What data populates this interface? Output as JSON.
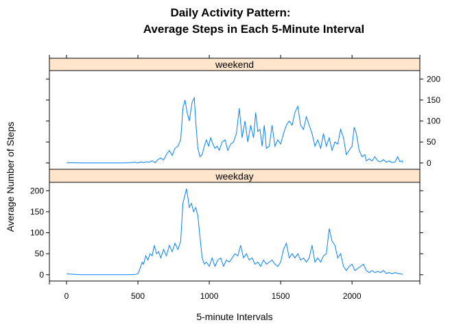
{
  "chart_data": {
    "type": "line",
    "title": "Daily Activity Pattern:",
    "subtitle": "Average Steps in Each 5-Minute Interval",
    "xlabel": "5-minute Intervals",
    "ylabel": "Average Number of Steps",
    "xlim": [
      -120,
      2475
    ],
    "ylim": [
      -15,
      220
    ],
    "x_ticks": [
      0,
      500,
      1000,
      1500,
      2000
    ],
    "y_ticks": [
      0,
      50,
      100,
      150,
      200
    ],
    "line_color": "#0080ff",
    "strip_color": "#ffe5cc",
    "panels": [
      {
        "name": "weekend",
        "points": [
          [
            0,
            1
          ],
          [
            100,
            0
          ],
          [
            200,
            0
          ],
          [
            300,
            0
          ],
          [
            400,
            0
          ],
          [
            450,
            1
          ],
          [
            480,
            2
          ],
          [
            500,
            0
          ],
          [
            520,
            3
          ],
          [
            540,
            1
          ],
          [
            560,
            3
          ],
          [
            580,
            2
          ],
          [
            600,
            5
          ],
          [
            620,
            1
          ],
          [
            640,
            8
          ],
          [
            660,
            12
          ],
          [
            680,
            7
          ],
          [
            700,
            20
          ],
          [
            720,
            30
          ],
          [
            740,
            18
          ],
          [
            760,
            35
          ],
          [
            780,
            40
          ],
          [
            800,
            55
          ],
          [
            815,
            130
          ],
          [
            830,
            150
          ],
          [
            845,
            120
          ],
          [
            860,
            100
          ],
          [
            880,
            145
          ],
          [
            895,
            155
          ],
          [
            905,
            100
          ],
          [
            920,
            35
          ],
          [
            935,
            15
          ],
          [
            950,
            20
          ],
          [
            965,
            40
          ],
          [
            980,
            55
          ],
          [
            995,
            40
          ],
          [
            1010,
            60
          ],
          [
            1025,
            45
          ],
          [
            1040,
            35
          ],
          [
            1055,
            40
          ],
          [
            1070,
            30
          ],
          [
            1090,
            50
          ],
          [
            1110,
            55
          ],
          [
            1130,
            30
          ],
          [
            1150,
            45
          ],
          [
            1170,
            50
          ],
          [
            1190,
            70
          ],
          [
            1210,
            130
          ],
          [
            1230,
            60
          ],
          [
            1250,
            100
          ],
          [
            1270,
            50
          ],
          [
            1290,
            90
          ],
          [
            1310,
            60
          ],
          [
            1325,
            120
          ],
          [
            1340,
            75
          ],
          [
            1355,
            80
          ],
          [
            1370,
            40
          ],
          [
            1385,
            90
          ],
          [
            1400,
            35
          ],
          [
            1420,
            40
          ],
          [
            1440,
            90
          ],
          [
            1460,
            40
          ],
          [
            1480,
            55
          ],
          [
            1500,
            45
          ],
          [
            1520,
            70
          ],
          [
            1540,
            90
          ],
          [
            1560,
            100
          ],
          [
            1580,
            90
          ],
          [
            1600,
            120
          ],
          [
            1620,
            135
          ],
          [
            1640,
            90
          ],
          [
            1660,
            80
          ],
          [
            1680,
            110
          ],
          [
            1700,
            90
          ],
          [
            1720,
            70
          ],
          [
            1740,
            40
          ],
          [
            1760,
            55
          ],
          [
            1780,
            35
          ],
          [
            1800,
            70
          ],
          [
            1820,
            40
          ],
          [
            1840,
            60
          ],
          [
            1860,
            30
          ],
          [
            1880,
            50
          ],
          [
            1900,
            45
          ],
          [
            1920,
            80
          ],
          [
            1940,
            60
          ],
          [
            1960,
            20
          ],
          [
            1980,
            30
          ],
          [
            2000,
            40
          ],
          [
            2015,
            85
          ],
          [
            2030,
            70
          ],
          [
            2050,
            30
          ],
          [
            2070,
            15
          ],
          [
            2090,
            20
          ],
          [
            2100,
            5
          ],
          [
            2120,
            10
          ],
          [
            2140,
            5
          ],
          [
            2160,
            15
          ],
          [
            2180,
            5
          ],
          [
            2200,
            3
          ],
          [
            2220,
            8
          ],
          [
            2240,
            2
          ],
          [
            2260,
            5
          ],
          [
            2280,
            1
          ],
          [
            2300,
            2
          ],
          [
            2320,
            15
          ],
          [
            2335,
            3
          ],
          [
            2350,
            5
          ],
          [
            2355,
            1
          ]
        ]
      },
      {
        "name": "weekday",
        "points": [
          [
            0,
            2
          ],
          [
            100,
            0
          ],
          [
            200,
            0
          ],
          [
            300,
            0
          ],
          [
            400,
            0
          ],
          [
            450,
            0
          ],
          [
            480,
            1
          ],
          [
            500,
            2
          ],
          [
            510,
            10
          ],
          [
            520,
            20
          ],
          [
            530,
            30
          ],
          [
            540,
            25
          ],
          [
            555,
            45
          ],
          [
            570,
            35
          ],
          [
            585,
            50
          ],
          [
            600,
            45
          ],
          [
            615,
            70
          ],
          [
            630,
            50
          ],
          [
            645,
            55
          ],
          [
            660,
            40
          ],
          [
            680,
            60
          ],
          [
            700,
            45
          ],
          [
            720,
            70
          ],
          [
            740,
            55
          ],
          [
            760,
            75
          ],
          [
            780,
            60
          ],
          [
            800,
            80
          ],
          [
            815,
            170
          ],
          [
            830,
            190
          ],
          [
            840,
            205
          ],
          [
            850,
            185
          ],
          [
            860,
            160
          ],
          [
            875,
            170
          ],
          [
            890,
            150
          ],
          [
            905,
            160
          ],
          [
            920,
            140
          ],
          [
            935,
            90
          ],
          [
            950,
            40
          ],
          [
            965,
            25
          ],
          [
            980,
            30
          ],
          [
            1000,
            20
          ],
          [
            1020,
            40
          ],
          [
            1040,
            20
          ],
          [
            1060,
            35
          ],
          [
            1080,
            40
          ],
          [
            1100,
            20
          ],
          [
            1120,
            35
          ],
          [
            1140,
            30
          ],
          [
            1160,
            40
          ],
          [
            1180,
            50
          ],
          [
            1200,
            45
          ],
          [
            1220,
            70
          ],
          [
            1240,
            40
          ],
          [
            1260,
            50
          ],
          [
            1280,
            35
          ],
          [
            1300,
            40
          ],
          [
            1320,
            25
          ],
          [
            1340,
            30
          ],
          [
            1360,
            20
          ],
          [
            1380,
            35
          ],
          [
            1400,
            25
          ],
          [
            1420,
            30
          ],
          [
            1440,
            35
          ],
          [
            1460,
            25
          ],
          [
            1480,
            20
          ],
          [
            1500,
            30
          ],
          [
            1520,
            60
          ],
          [
            1540,
            75
          ],
          [
            1560,
            40
          ],
          [
            1580,
            50
          ],
          [
            1600,
            40
          ],
          [
            1620,
            50
          ],
          [
            1640,
            35
          ],
          [
            1660,
            40
          ],
          [
            1680,
            30
          ],
          [
            1700,
            40
          ],
          [
            1720,
            70
          ],
          [
            1740,
            30
          ],
          [
            1760,
            40
          ],
          [
            1780,
            30
          ],
          [
            1800,
            45
          ],
          [
            1820,
            50
          ],
          [
            1840,
            110
          ],
          [
            1860,
            80
          ],
          [
            1880,
            70
          ],
          [
            1900,
            40
          ],
          [
            1920,
            50
          ],
          [
            1940,
            20
          ],
          [
            1960,
            10
          ],
          [
            1980,
            20
          ],
          [
            2000,
            25
          ],
          [
            2020,
            10
          ],
          [
            2040,
            15
          ],
          [
            2060,
            20
          ],
          [
            2080,
            25
          ],
          [
            2100,
            10
          ],
          [
            2120,
            5
          ],
          [
            2140,
            10
          ],
          [
            2160,
            5
          ],
          [
            2180,
            8
          ],
          [
            2200,
            5
          ],
          [
            2220,
            10
          ],
          [
            2240,
            3
          ],
          [
            2260,
            5
          ],
          [
            2280,
            2
          ],
          [
            2300,
            5
          ],
          [
            2320,
            3
          ],
          [
            2340,
            2
          ],
          [
            2355,
            1
          ]
        ]
      }
    ]
  }
}
